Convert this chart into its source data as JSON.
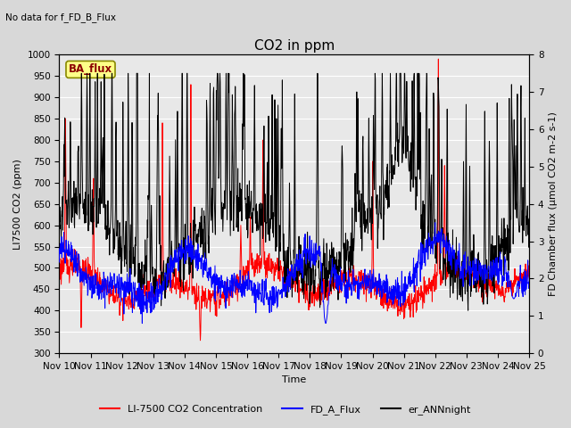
{
  "title": "CO2 in ppm",
  "top_left_text": "No data for f_FD_B_Flux",
  "annotation_text": "BA_flux",
  "xlabel": "Time",
  "ylabel_left": "LI7500 CO2 (ppm)",
  "ylabel_right": "FD Chamber flux (μmol CO2 m-2 s-1)",
  "ylim_left": [
    300,
    1000
  ],
  "ylim_right": [
    0.0,
    8.0
  ],
  "yticks_left": [
    300,
    350,
    400,
    450,
    500,
    550,
    600,
    650,
    700,
    750,
    800,
    850,
    900,
    950,
    1000
  ],
  "yticks_right": [
    0.0,
    1.0,
    2.0,
    3.0,
    4.0,
    5.0,
    6.0,
    7.0,
    8.0
  ],
  "xtick_labels": [
    "Nov 10",
    "Nov 11",
    "Nov 12",
    "Nov 13",
    "Nov 14",
    "Nov 15",
    "Nov 16",
    "Nov 17",
    "Nov 18",
    "Nov 19",
    "Nov 20",
    "Nov 21",
    "Nov 22",
    "Nov 23",
    "Nov 24",
    "Nov 25"
  ],
  "color_red": "#FF0000",
  "color_blue": "#0000FF",
  "color_black": "#000000",
  "legend_labels": [
    "LI-7500 CO2 Concentration",
    "FD_A_Flux",
    "er_ANNnight"
  ],
  "fig_bg_color": "#D8D8D8",
  "plot_bg_color": "#E8E8E8",
  "grid_color": "#FFFFFF",
  "title_fontsize": 11,
  "label_fontsize": 8,
  "tick_fontsize": 7.5
}
